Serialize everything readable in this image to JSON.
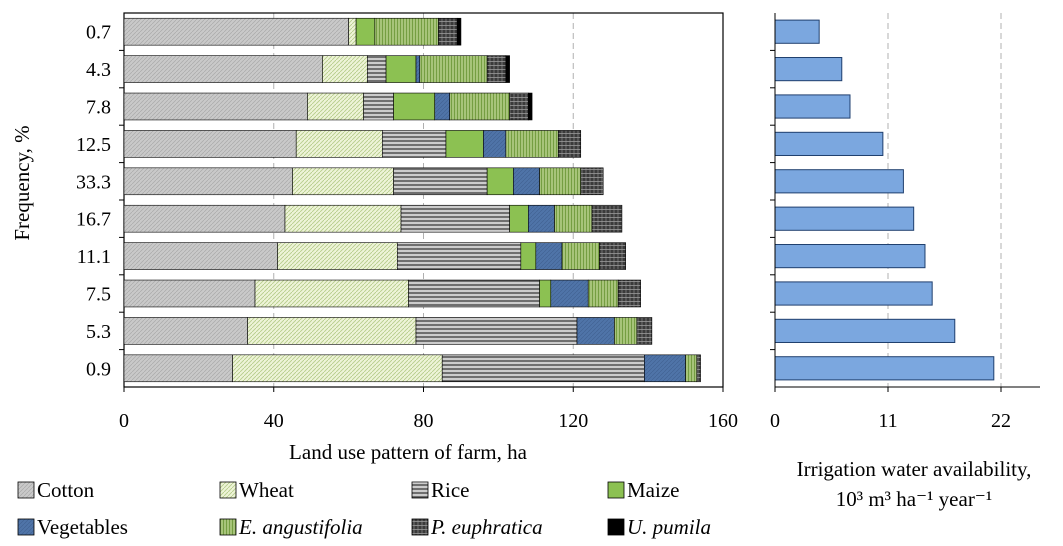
{
  "chart_data": [
    {
      "type": "bar",
      "orientation": "horizontal",
      "stacked": true,
      "xlabel": "Land use pattern of farm, ha",
      "ylabel": "Frequency, %",
      "xlim": [
        0,
        160
      ],
      "xticks": [
        "0",
        "40",
        "80",
        "120",
        "160"
      ],
      "categories": [
        "0.7",
        "4.3",
        "7.8",
        "12.5",
        "33.3",
        "16.7",
        "11.1",
        "7.5",
        "5.3",
        "0.9"
      ],
      "grid": "vertical dashed",
      "series": [
        {
          "name": "Cotton",
          "values": [
            60,
            53,
            49,
            46,
            45,
            43,
            41,
            35,
            33,
            29
          ]
        },
        {
          "name": "Wheat",
          "values": [
            2,
            12,
            15,
            23,
            27,
            31,
            32,
            41,
            45,
            56
          ]
        },
        {
          "name": "Rice",
          "values": [
            0,
            5,
            8,
            17,
            25,
            29,
            33,
            35,
            43,
            54
          ]
        },
        {
          "name": "Maize",
          "values": [
            5,
            8,
            11,
            10,
            7,
            5,
            4,
            3,
            0,
            0
          ]
        },
        {
          "name": "Vegetables",
          "values": [
            0,
            1,
            4,
            6,
            7,
            7,
            7,
            10,
            10,
            11
          ]
        },
        {
          "name": "E. angustifolia",
          "values": [
            17,
            18,
            16,
            14,
            11,
            10,
            10,
            8,
            6,
            3
          ]
        },
        {
          "name": "P. euphratica",
          "values": [
            5,
            5,
            5,
            6,
            6,
            8,
            7,
            6,
            4,
            1
          ]
        },
        {
          "name": "U. pumila",
          "values": [
            1,
            1,
            1,
            0,
            0,
            0,
            0,
            0,
            0,
            0
          ]
        }
      ],
      "legend": [
        {
          "label": "Cotton",
          "italic": false
        },
        {
          "label": "Wheat",
          "italic": false
        },
        {
          "label": "Rice",
          "italic": false
        },
        {
          "label": "Maize",
          "italic": false
        },
        {
          "label": "Vegetables",
          "italic": false
        },
        {
          "label": "E. angustifolia",
          "italic": true
        },
        {
          "label": "P. euphratica",
          "italic": true
        },
        {
          "label": "U. pumila",
          "italic": true
        }
      ],
      "legend_placement": "bottom",
      "colors": {
        "Cotton": "#c8c8c8",
        "Wheat": "#e8f0cf",
        "Rice": "#7f7f7f",
        "Maize": "#8cbd50",
        "Vegetables": "#4f74a8",
        "E. angustifolia": "#9cbc70",
        "P. euphratica": "#555555",
        "U. pumila": "#000000"
      }
    },
    {
      "type": "bar",
      "orientation": "horizontal",
      "xlabel_line1": "Irrigation water availability,",
      "xlabel_line2": "10³ m³ ha⁻¹ year⁻¹",
      "xlim": [
        0,
        22
      ],
      "xticks": [
        "0",
        "11",
        "22"
      ],
      "categories": [
        "0.7",
        "4.3",
        "7.8",
        "12.5",
        "33.3",
        "16.7",
        "11.1",
        "7.5",
        "5.3",
        "0.9"
      ],
      "values": [
        4.3,
        6.5,
        7.3,
        10.5,
        12.5,
        13.5,
        14.6,
        15.3,
        17.5,
        21.3
      ],
      "color": "#7ba7df",
      "grid": "vertical dashed"
    }
  ]
}
